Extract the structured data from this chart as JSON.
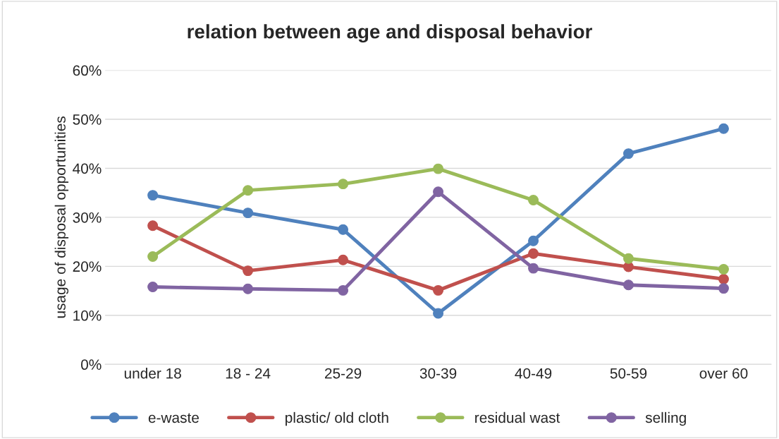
{
  "chart_data": {
    "type": "line",
    "title": "relation between age and disposal behavior",
    "ylabel": "usage of disposal opportunities",
    "categories": [
      "under 18",
      "18 - 24",
      "25-29",
      "30-39",
      "40-49",
      "50-59",
      "over 60"
    ],
    "series": [
      {
        "name": "e-waste",
        "color": "#4f81bd",
        "values": [
          34.5,
          30.9,
          27.5,
          10.4,
          25.2,
          43.0,
          48.1
        ]
      },
      {
        "name": "plastic/ old cloth",
        "color": "#c0504d",
        "values": [
          28.3,
          19.1,
          21.3,
          15.1,
          22.6,
          19.9,
          17.4
        ]
      },
      {
        "name": "residual wast",
        "color": "#9bbb59",
        "values": [
          22.0,
          35.5,
          36.8,
          39.9,
          33.5,
          21.6,
          19.4
        ]
      },
      {
        "name": "selling",
        "color": "#8064a2",
        "values": [
          15.8,
          15.4,
          15.1,
          35.2,
          19.6,
          16.2,
          15.5
        ]
      }
    ],
    "ylim": [
      0,
      60
    ],
    "yticks": [
      {
        "value": 0,
        "label": "0%"
      },
      {
        "value": 10,
        "label": "10%"
      },
      {
        "value": 20,
        "label": "20%"
      },
      {
        "value": 30,
        "label": "30%"
      },
      {
        "value": 40,
        "label": "40%"
      },
      {
        "value": 50,
        "label": "50%"
      },
      {
        "value": 60,
        "label": "60%"
      }
    ],
    "grid": "y",
    "legend": "bottom",
    "marker": "circle",
    "line_style": "solid"
  }
}
